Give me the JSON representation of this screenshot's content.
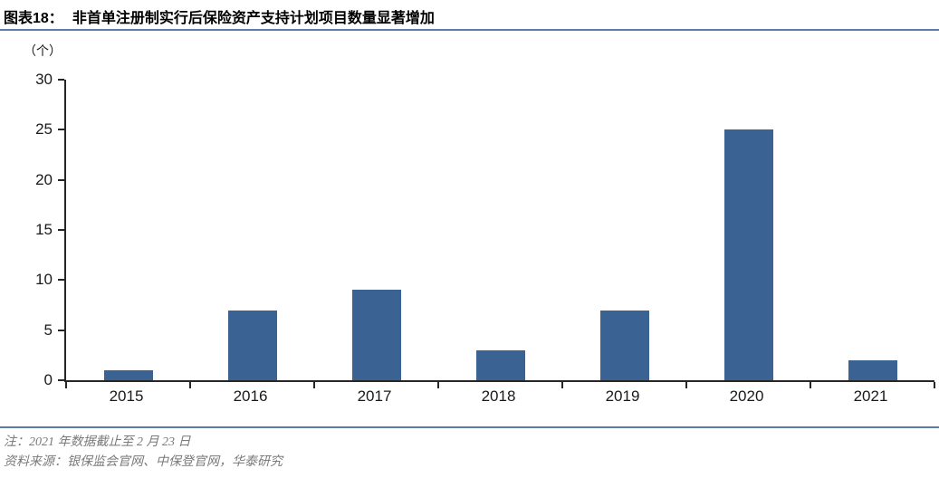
{
  "header": {
    "figure_label": "图表18：",
    "title": "非首单注册制实行后保险资产支持计划项目数量显著增加"
  },
  "chart_data": {
    "type": "bar",
    "title": "非首单注册制实行后保险资产支持计划项目数量显著增加",
    "unit_label": "（个）",
    "categories": [
      "2015",
      "2016",
      "2017",
      "2018",
      "2019",
      "2020",
      "2021"
    ],
    "values": [
      1,
      7,
      9,
      3,
      7,
      25,
      2
    ],
    "xlabel": "",
    "ylabel": "（个）",
    "ylim": [
      0,
      30
    ],
    "yticks": [
      0,
      5,
      10,
      15,
      20,
      25,
      30
    ],
    "grid": false,
    "legend_position": "none",
    "bar_color": "#3A6394"
  },
  "footer": {
    "note": "注：2021 年数据截止至 2 月 23 日",
    "source": "资料来源：银保监会官网、中保登官网，华泰研究"
  },
  "colors": {
    "rule": "#5B7BA8",
    "axis": "#262626",
    "note_text": "#7A7A7A",
    "title_text": "#000000"
  }
}
